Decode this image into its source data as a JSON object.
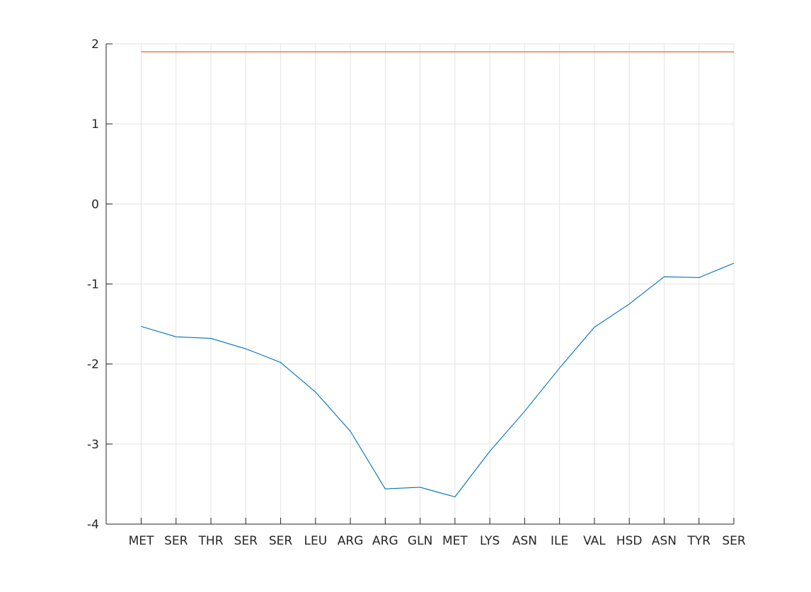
{
  "chart_data": {
    "type": "line",
    "title": "",
    "xlabel": "",
    "ylabel": "",
    "categories": [
      "MET",
      "SER",
      "THR",
      "SER",
      "SER",
      "LEU",
      "ARG",
      "ARG",
      "GLN",
      "MET",
      "LYS",
      "ASN",
      "ILE",
      "VAL",
      "HSD",
      "ASN",
      "TYR",
      "SER"
    ],
    "ylim": [
      -4,
      2
    ],
    "yticks": [
      2,
      1,
      0,
      -1,
      -2,
      -3,
      -4
    ],
    "grid": true,
    "legend": "none",
    "series": [
      {
        "color": "#0072BD",
        "values": [
          -1.53,
          -1.66,
          -1.68,
          -1.81,
          -1.98,
          -2.35,
          -2.84,
          -3.56,
          -3.54,
          -3.66,
          -3.09,
          -2.59,
          -2.05,
          -1.54,
          -1.25,
          -0.91,
          -0.92,
          -0.74
        ]
      },
      {
        "color": "#D95319",
        "values": [
          1.9,
          1.9,
          1.9,
          1.9,
          1.9,
          1.9,
          1.9,
          1.9,
          1.9,
          1.9,
          1.9,
          1.9,
          1.9,
          1.9,
          1.9,
          1.9,
          1.9,
          1.9
        ]
      }
    ]
  }
}
